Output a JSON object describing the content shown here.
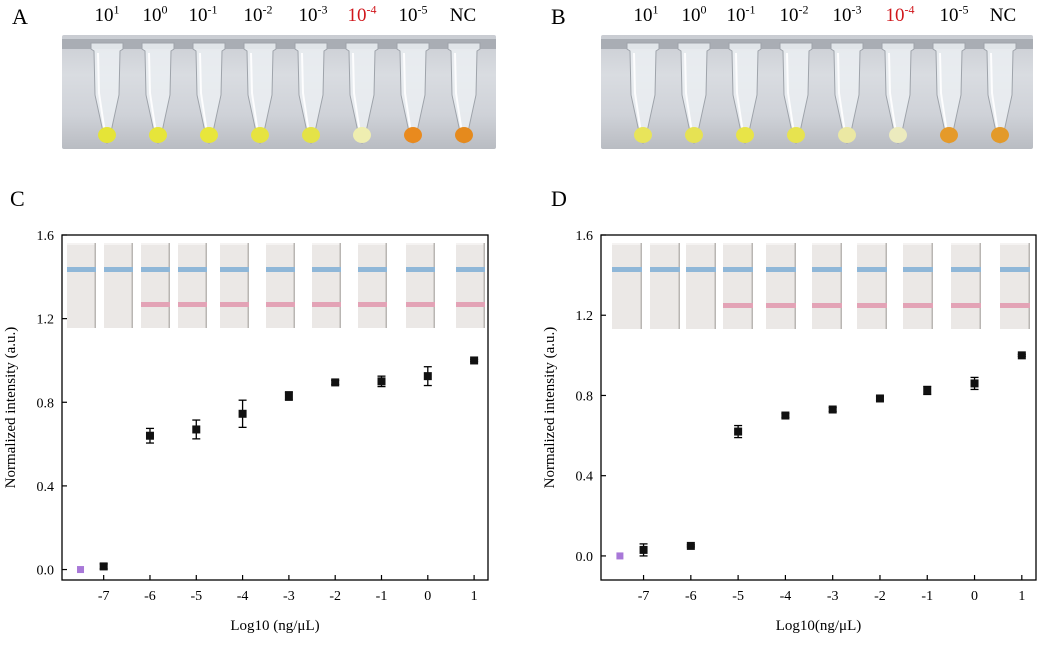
{
  "panel_labels": [
    "A",
    "B",
    "C",
    "D"
  ],
  "tube_labels": [
    {
      "base": "10",
      "exp": "1",
      "highlight": false
    },
    {
      "base": "10",
      "exp": "0",
      "highlight": false
    },
    {
      "base": "10",
      "exp": "-1",
      "highlight": false
    },
    {
      "base": "10",
      "exp": "-2",
      "highlight": false
    },
    {
      "base": "10",
      "exp": "-3",
      "highlight": false
    },
    {
      "base": "10",
      "exp": "-4",
      "highlight": true
    },
    {
      "base": "10",
      "exp": "-5",
      "highlight": false
    },
    {
      "base": "NC",
      "exp": "",
      "highlight": false
    }
  ],
  "colors": {
    "yellow_pos": "#e6e43a",
    "pale_pos": "#efeeb0",
    "orange_neg": "#e98a1e",
    "highlight_red": "#d0161b",
    "control_line": "#8fb7d8",
    "test_line": "#e3a3b6",
    "marker": "#111111",
    "ntc_marker": "#a878d8"
  },
  "tubes_A": [
    {
      "label": "10^1",
      "color": "#e5e437"
    },
    {
      "label": "10^0",
      "color": "#e6e53a"
    },
    {
      "label": "10^-1",
      "color": "#e8e63b"
    },
    {
      "label": "10^-2",
      "color": "#e6e340"
    },
    {
      "label": "10^-3",
      "color": "#e4e247"
    },
    {
      "label": "10^-4",
      "color": "#efeeb0"
    },
    {
      "label": "10^-5",
      "color": "#e98a1e"
    },
    {
      "label": "NC",
      "color": "#e58a1d"
    }
  ],
  "tubes_B": [
    {
      "label": "10^1",
      "color": "#e8e45a"
    },
    {
      "label": "10^0",
      "color": "#e6e253"
    },
    {
      "label": "10^-1",
      "color": "#e8e448"
    },
    {
      "label": "10^-2",
      "color": "#e7e34f"
    },
    {
      "label": "10^-3",
      "color": "#ebe8a3"
    },
    {
      "label": "10^-4",
      "color": "#ecebbe"
    },
    {
      "label": "10^-5",
      "color": "#e59a2a"
    },
    {
      "label": "NC",
      "color": "#e39a2a"
    }
  ],
  "chart_data": [
    {
      "panel": "C",
      "type": "scatter",
      "xlabel": "Log10 (ng/μL)",
      "ylabel": "Normalized intensity (a.u.)",
      "xlim": [
        -7.9,
        1.3
      ],
      "ylim": [
        -0.05,
        1.6
      ],
      "xticks": [
        -7,
        -6,
        -5,
        -4,
        -3,
        -2,
        -1,
        0,
        1
      ],
      "yticks": [
        "0.0",
        "0.4",
        "0.8",
        "1.2",
        "1.6"
      ],
      "ytick_values": [
        0,
        0.4,
        0.8,
        1.2,
        1.6
      ],
      "points": [
        {
          "x": -7,
          "y": 0.015,
          "err": 0.012
        },
        {
          "x": -6,
          "y": 0.64,
          "err": 0.035
        },
        {
          "x": -5,
          "y": 0.67,
          "err": 0.045
        },
        {
          "x": -4,
          "y": 0.745,
          "err": 0.065
        },
        {
          "x": -3,
          "y": 0.83,
          "err": 0.02
        },
        {
          "x": -2,
          "y": 0.895,
          "err": 0.01
        },
        {
          "x": -1,
          "y": 0.9,
          "err": 0.025
        },
        {
          "x": 0,
          "y": 0.925,
          "err": 0.045
        },
        {
          "x": 1,
          "y": 1.0,
          "err": 0.005
        }
      ],
      "ntc_point": {
        "x": -7.5,
        "y": 0.0
      },
      "strips": [
        {
          "test_line": false
        },
        {
          "test_line": false
        },
        {
          "test_line": true
        },
        {
          "test_line": true
        },
        {
          "test_line": true
        },
        {
          "test_line": true
        },
        {
          "test_line": true
        },
        {
          "test_line": true
        },
        {
          "test_line": true
        },
        {
          "test_line": true
        }
      ]
    },
    {
      "panel": "D",
      "type": "scatter",
      "xlabel": "Log10(ng/μL)",
      "ylabel": "Normalized intensity (a.u.)",
      "xlim": [
        -7.9,
        1.3
      ],
      "ylim": [
        -0.12,
        1.6
      ],
      "xticks": [
        -7,
        -6,
        -5,
        -4,
        -3,
        -2,
        -1,
        0,
        1
      ],
      "yticks": [
        "0.0",
        "0.4",
        "0.8",
        "1.2",
        "1.6"
      ],
      "ytick_values": [
        0,
        0.4,
        0.8,
        1.2,
        1.6
      ],
      "points": [
        {
          "x": -7,
          "y": 0.03,
          "err": 0.03
        },
        {
          "x": -6,
          "y": 0.05,
          "err": 0.005
        },
        {
          "x": -5,
          "y": 0.62,
          "err": 0.03
        },
        {
          "x": -4,
          "y": 0.7,
          "err": 0.01
        },
        {
          "x": -3,
          "y": 0.73,
          "err": 0.01
        },
        {
          "x": -2,
          "y": 0.785,
          "err": 0.01
        },
        {
          "x": -1,
          "y": 0.825,
          "err": 0.02
        },
        {
          "x": 0,
          "y": 0.86,
          "err": 0.03
        },
        {
          "x": 1,
          "y": 1.0,
          "err": 0.005
        }
      ],
      "ntc_point": {
        "x": -7.5,
        "y": 0.0
      },
      "strips": [
        {
          "test_line": false
        },
        {
          "test_line": false
        },
        {
          "test_line": false
        },
        {
          "test_line": true
        },
        {
          "test_line": true
        },
        {
          "test_line": true
        },
        {
          "test_line": true
        },
        {
          "test_line": true
        },
        {
          "test_line": true
        },
        {
          "test_line": true
        }
      ]
    }
  ]
}
